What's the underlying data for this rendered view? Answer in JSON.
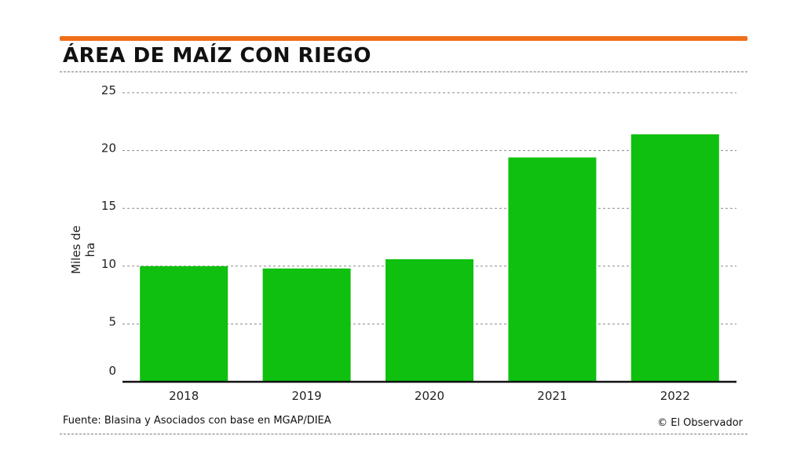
{
  "header": {
    "title": "ÁREA DE MAÍZ CON RIEGO",
    "accent_color": "#ef6f1a"
  },
  "footer": {
    "source": "Fuente: Blasina y Asociados con base en MGAP/DIEA",
    "credit": "© El Observador"
  },
  "chart_data": {
    "type": "bar",
    "title": "ÁREA DE MAÍZ CON RIEGO",
    "xlabel": "",
    "ylabel": "Miles de ha",
    "categories": [
      "2018",
      "2019",
      "2020",
      "2021",
      "2022"
    ],
    "values": [
      10.0,
      9.8,
      10.6,
      19.4,
      21.4
    ],
    "ylim": [
      0,
      25
    ],
    "yticks": [
      0,
      5,
      10,
      15,
      20,
      25
    ],
    "grid": true,
    "bar_color": "#0fc00f"
  }
}
